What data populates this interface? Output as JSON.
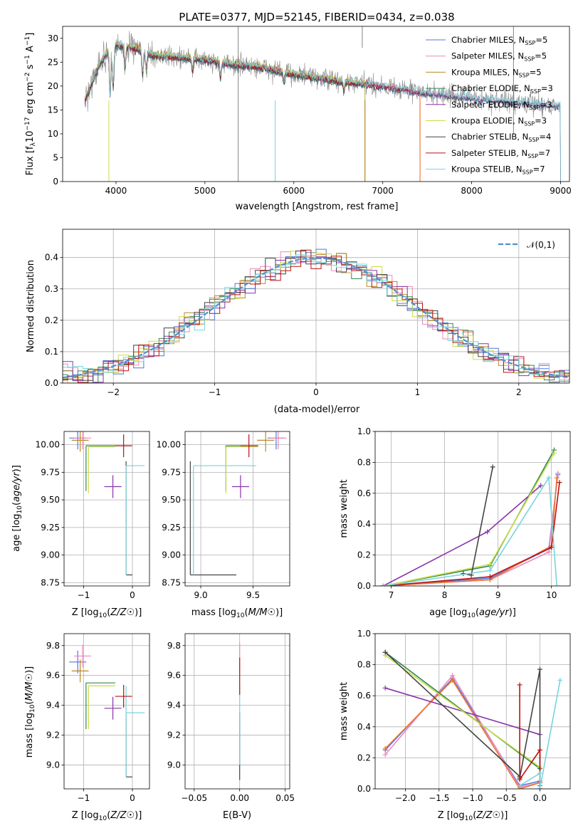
{
  "chart_data": [
    {
      "type": "line",
      "title": "PLATE=0377, MJD=52145, FIBERID=0434, z=0.038",
      "xlabel": "wavelength [Angstrom, rest frame]",
      "ylabel": "Flux [f_λ 10^-17 erg cm^-2 s^-1 A^-1]",
      "xlim": [
        3400,
        9100
      ],
      "ylim": [
        0,
        32.5
      ],
      "xticks": [
        "4000",
        "5000",
        "6000",
        "7000",
        "8000",
        "9000"
      ],
      "yticks": [
        "0",
        "5",
        "10",
        "15",
        "20",
        "25",
        "30"
      ],
      "legend_position": "top-right",
      "spectrum_envelope": {
        "x": [
          3650,
          3800,
          3900,
          4000,
          4200,
          4400,
          4700,
          5000,
          5300,
          5600,
          6000,
          6500,
          7000,
          7500,
          8000,
          8500,
          8900
        ],
        "y": [
          17,
          24,
          27,
          28.5,
          28,
          26.5,
          26,
          25.5,
          24.5,
          24,
          22.5,
          21,
          20,
          18.5,
          17.5,
          16.5,
          16
        ]
      },
      "series": [
        {
          "name": "Chabrier MILES, N_SSP=5",
          "color": "#5577dd",
          "x_end": 9000
        },
        {
          "name": "Salpeter MILES, N_SSP=5",
          "color": "#ee88bb",
          "x_end": 9000
        },
        {
          "name": "Kroupa MILES, N_SSP=5",
          "color": "#bb8822",
          "x_end": 6800
        },
        {
          "name": "Chabrier ELODIE, N_SSP=3",
          "color": "#338855",
          "x_end": 6800
        },
        {
          "name": "Salpeter ELODIE, N_SSP=3",
          "color": "#8833aa",
          "x_end": 6800
        },
        {
          "name": "Kroupa ELODIE, N_SSP=3",
          "color": "#ccdd44",
          "x_end": 6800
        },
        {
          "name": "Chabrier STELIB, N_SSP=4",
          "color": "#444444",
          "x_end": 9000
        },
        {
          "name": "Salpeter STELIB, N_SSP=7",
          "color": "#bb1111",
          "x_end": 7420
        },
        {
          "name": "Kroupa STELIB, N_SSP=7",
          "color": "#77d4dd",
          "x_end": 9000
        }
      ],
      "data_color": "#888888"
    },
    {
      "type": "histogram",
      "xlabel": "(data-model)/error",
      "ylabel": "Normed distribution",
      "xlim": [
        -2.5,
        2.5
      ],
      "ylim": [
        0,
        0.49
      ],
      "xticks": [
        "−2",
        "−1",
        "0",
        "1",
        "2"
      ],
      "yticks": [
        "0.0",
        "0.1",
        "0.2",
        "0.3",
        "0.4"
      ],
      "bin_width": 0.1,
      "reference_label": "𝒩(0,1)",
      "reference_color": "#4f8fd0",
      "grid": true,
      "legend_position": "top-right",
      "colors": [
        "#5577dd",
        "#ee88bb",
        "#bb8822",
        "#338855",
        "#8833aa",
        "#ccdd44",
        "#444444",
        "#bb1111",
        "#77d4dd"
      ]
    },
    {
      "type": "scatter",
      "xlabel": "Z [log10(Z/Z☉)]",
      "ylabel": "age  [log10(age/yr)]",
      "xlim": [
        -1.4,
        0.35
      ],
      "ylim": [
        8.72,
        10.12
      ],
      "xticks": [
        "−1",
        "0"
      ],
      "yticks": [
        "8.75",
        "9.00",
        "9.25",
        "9.50",
        "9.75",
        "10.00"
      ],
      "grid": true,
      "points": [
        {
          "x": -1.12,
          "y": 10.06,
          "color": "#5577dd"
        },
        {
          "x": -1.02,
          "y": 10.06,
          "color": "#ee88bb"
        },
        {
          "x": -1.07,
          "y": 10.04,
          "color": "#bb8822"
        },
        {
          "x": -0.4,
          "y": 9.62,
          "color": "#8833aa"
        },
        {
          "x": -0.18,
          "y": 9.99,
          "color": "#bb1111"
        }
      ],
      "ranges": [
        {
          "color": "#338855",
          "xmin": -0.95,
          "xmax": -0.35,
          "y": 9.99,
          "ymin": 9.58,
          "ymax": 9.99
        },
        {
          "color": "#ccdd44",
          "xmin": -0.9,
          "xmax": -0.35,
          "y": 9.98,
          "ymin": 9.56,
          "ymax": 9.98
        },
        {
          "color": "#444444",
          "xmin": -0.13,
          "xmax": 0.0,
          "y": 8.82,
          "ymin": 8.82,
          "ymax": 9.85
        },
        {
          "color": "#77d4dd",
          "xmin": -0.13,
          "xmax": 0.25,
          "y": 9.81,
          "ymin": 8.82,
          "ymax": 9.81
        }
      ]
    },
    {
      "type": "scatter",
      "xlabel": "mass [log10(M/M☉)]",
      "ylabel": "",
      "xlim": [
        8.85,
        9.85
      ],
      "ylim": [
        8.72,
        10.12
      ],
      "xticks": [
        "9.0",
        "9.5"
      ],
      "yticks": [
        "8.75",
        "9.00",
        "9.25",
        "9.50",
        "9.75",
        "10.00"
      ],
      "grid": true,
      "points": [
        {
          "x": 9.72,
          "y": 10.06,
          "color": "#5577dd"
        },
        {
          "x": 9.74,
          "y": 10.06,
          "color": "#ee88bb"
        },
        {
          "x": 9.62,
          "y": 10.04,
          "color": "#bb8822"
        },
        {
          "x": 9.38,
          "y": 9.62,
          "color": "#8833aa"
        },
        {
          "x": 9.46,
          "y": 9.99,
          "color": "#bb1111"
        }
      ],
      "ranges": [
        {
          "color": "#338855",
          "xmin": 9.24,
          "xmax": 9.55,
          "y": 9.99,
          "ymin": 9.58,
          "ymax": 9.99
        },
        {
          "color": "#ccdd44",
          "xmin": 9.24,
          "xmax": 9.55,
          "y": 9.98,
          "ymin": 9.56,
          "ymax": 9.98
        },
        {
          "color": "#444444",
          "xmin": 8.9,
          "xmax": 9.34,
          "y": 8.82,
          "ymin": 8.82,
          "ymax": 9.85
        },
        {
          "color": "#77d4dd",
          "xmin": 8.93,
          "xmax": 9.53,
          "y": 9.81,
          "ymin": 8.82,
          "ymax": 9.81
        }
      ]
    },
    {
      "type": "line",
      "xlabel": "age  [log10(age/yr)]",
      "ylabel": "mass weight",
      "xlim": [
        6.7,
        10.35
      ],
      "ylim": [
        0,
        1.0
      ],
      "xticks": [
        "7",
        "8",
        "9",
        "10"
      ],
      "yticks": [
        "0.0",
        "0.2",
        "0.4",
        "0.6",
        "0.8",
        "1.0"
      ],
      "grid": true,
      "series": [
        {
          "color": "#5577dd",
          "x": [
            6.85,
            8.85,
            9.95,
            10.12
          ],
          "y": [
            0.0,
            0.05,
            0.24,
            0.72
          ]
        },
        {
          "color": "#ee88bb",
          "x": [
            6.85,
            8.85,
            9.95,
            10.12
          ],
          "y": [
            0.0,
            0.04,
            0.22,
            0.73
          ]
        },
        {
          "color": "#ee7733",
          "x": [
            6.85,
            8.85,
            10.0,
            10.1
          ],
          "y": [
            0.0,
            0.04,
            0.26,
            0.7
          ]
        },
        {
          "color": "#338855",
          "x": [
            6.85,
            8.85,
            10.05
          ],
          "y": [
            0.0,
            0.13,
            0.88
          ]
        },
        {
          "color": "#8833aa",
          "x": [
            6.85,
            8.8,
            9.8
          ],
          "y": [
            0.0,
            0.35,
            0.65
          ]
        },
        {
          "color": "#ccdd44",
          "x": [
            6.85,
            8.85,
            10.05
          ],
          "y": [
            0.0,
            0.14,
            0.86
          ]
        },
        {
          "color": "#444444",
          "x": [
            8.35,
            8.5,
            8.9
          ],
          "y": [
            0.08,
            0.07,
            0.77
          ]
        },
        {
          "color": "#bb1111",
          "x": [
            6.85,
            8.85,
            10.0,
            10.15
          ],
          "y": [
            0.0,
            0.06,
            0.25,
            0.67
          ]
        },
        {
          "color": "#77d4dd",
          "x": [
            6.85,
            8.85,
            9.95,
            10.1
          ],
          "y": [
            0.0,
            0.1,
            0.7,
            0.0
          ]
        }
      ]
    },
    {
      "type": "scatter",
      "xlabel": "Z [log10(Z/Z☉)]",
      "ylabel": "mass [log10(M/M☉)]",
      "xlim": [
        -1.4,
        0.35
      ],
      "ylim": [
        8.84,
        9.88
      ],
      "xticks": [
        "−1",
        "0"
      ],
      "yticks": [
        "9.0",
        "9.2",
        "9.4",
        "9.6",
        "9.8"
      ],
      "grid": true,
      "points": [
        {
          "x": -1.12,
          "y": 9.69,
          "color": "#5577dd"
        },
        {
          "x": -1.02,
          "y": 9.73,
          "color": "#ee88bb"
        },
        {
          "x": -1.07,
          "y": 9.63,
          "color": "#bb8822"
        },
        {
          "x": -0.4,
          "y": 9.38,
          "color": "#8833aa"
        },
        {
          "x": -0.18,
          "y": 9.46,
          "color": "#bb1111"
        }
      ],
      "ranges": [
        {
          "color": "#338855",
          "xmin": -0.95,
          "xmax": -0.35,
          "y": 9.55,
          "ymin": 9.24,
          "ymax": 9.55
        },
        {
          "color": "#ccdd44",
          "xmin": -0.9,
          "xmax": -0.35,
          "y": 9.53,
          "ymin": 9.24,
          "ymax": 9.53
        },
        {
          "color": "#444444",
          "xmin": -0.13,
          "xmax": 0.0,
          "y": 8.92,
          "ymin": 8.92,
          "ymax": 9.34
        },
        {
          "color": "#77d4dd",
          "xmin": -0.13,
          "xmax": 0.25,
          "y": 9.35,
          "ymin": 8.92,
          "ymax": 9.53
        }
      ]
    },
    {
      "type": "scatter",
      "xlabel": "E(B-V)",
      "ylabel": "",
      "xlim": [
        -0.06,
        0.055
      ],
      "ylim": [
        8.84,
        9.88
      ],
      "xticks": [
        "−0.05",
        "0.00",
        "0.05"
      ],
      "yticks": [
        "9.0",
        "9.2",
        "9.4",
        "9.6",
        "9.8"
      ],
      "grid": true,
      "vertical_segments": [
        {
          "color": "#444444",
          "x": 0.0,
          "ymin": 8.9,
          "ymax": 9.35
        },
        {
          "color": "#77d4dd",
          "x": 0.0,
          "ymin": 9.0,
          "ymax": 9.55
        },
        {
          "color": "#ee88bb",
          "x": 0.0,
          "ymin": 9.6,
          "ymax": 9.82
        },
        {
          "color": "#bb1111",
          "x": 0.0,
          "ymin": 9.47,
          "ymax": 9.72
        }
      ]
    },
    {
      "type": "line",
      "xlabel": "Z [log10(Z/Z☉)]",
      "ylabel": "mass weight",
      "xlim": [
        -2.45,
        0.45
      ],
      "ylim": [
        0,
        1.0
      ],
      "xticks": [
        "−2.0",
        "−1.5",
        "−1.0",
        "−0.5",
        "0.0"
      ],
      "yticks": [
        "0.0",
        "0.2",
        "0.4",
        "0.6",
        "0.8",
        "1.0"
      ],
      "grid": true,
      "series": [
        {
          "color": "#5577dd",
          "x": [
            -2.3,
            -1.3,
            -0.3,
            0.0,
            0.0
          ],
          "y": [
            0.25,
            0.71,
            0.02,
            0.05,
            0.02
          ]
        },
        {
          "color": "#ee88bb",
          "x": [
            -2.3,
            -1.3,
            -0.3,
            0.0
          ],
          "y": [
            0.22,
            0.73,
            0.01,
            0.04
          ]
        },
        {
          "color": "#ee7733",
          "x": [
            -2.3,
            -1.3,
            -0.3,
            0.0
          ],
          "y": [
            0.26,
            0.7,
            0.0,
            0.04
          ]
        },
        {
          "color": "#338855",
          "x": [
            -2.3,
            0.0
          ],
          "y": [
            0.88,
            0.13
          ]
        },
        {
          "color": "#8833aa",
          "x": [
            -2.3,
            0.0
          ],
          "y": [
            0.65,
            0.35
          ]
        },
        {
          "color": "#ccdd44",
          "x": [
            -2.3,
            0.0
          ],
          "y": [
            0.86,
            0.14
          ]
        },
        {
          "color": "#444444",
          "x": [
            -2.3,
            -0.3,
            -0.3,
            0.0,
            0.0
          ],
          "y": [
            0.88,
            0.08,
            0.07,
            0.77,
            0.0
          ]
        },
        {
          "color": "#bb1111",
          "x": [
            -0.3,
            -0.3,
            0.0,
            0.0
          ],
          "y": [
            0.67,
            0.06,
            0.25,
            0.0
          ]
        },
        {
          "color": "#77d4dd",
          "x": [
            -0.3,
            0.0,
            0.0,
            0.3
          ],
          "y": [
            0.02,
            0.1,
            0.0,
            0.7
          ]
        }
      ]
    }
  ]
}
